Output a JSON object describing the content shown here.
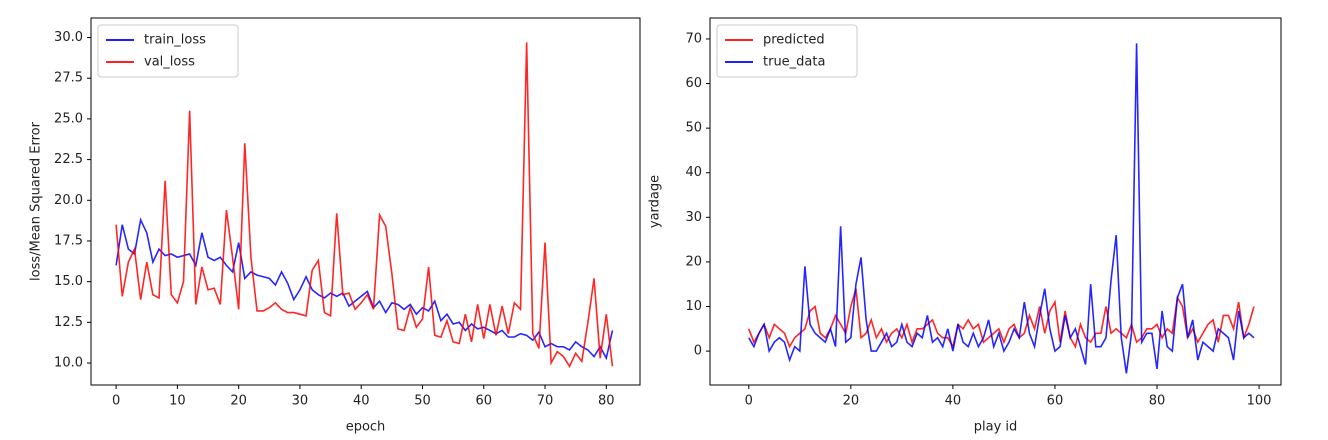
{
  "chart_data": [
    {
      "type": "line",
      "x_label": "epoch",
      "y_label": "loss/Mean Squared Error",
      "xlim": [
        -4.1,
        85.5
      ],
      "ylim": [
        8.65,
        31.2
      ],
      "xticks": [
        0,
        10,
        20,
        30,
        40,
        50,
        60,
        70,
        80
      ],
      "yticks": [
        {
          "value": 10,
          "label": "10.0"
        },
        {
          "value": 12.5,
          "label": "12.5"
        },
        {
          "value": 15,
          "label": "15.0"
        },
        {
          "value": 17.5,
          "label": "17.5"
        },
        {
          "value": 20,
          "label": "20.0"
        },
        {
          "value": 22.5,
          "label": "22.5"
        },
        {
          "value": 25,
          "label": "25.0"
        },
        {
          "value": 27.5,
          "label": "27.5"
        },
        {
          "value": 30,
          "label": "30.0"
        }
      ],
      "legend": "upper-left",
      "series": [
        {
          "name": "train_loss",
          "color": "#0000ff",
          "values": [
            16.0,
            18.5,
            17.0,
            16.7,
            18.8,
            18.0,
            16.2,
            17.0,
            16.6,
            16.7,
            16.5,
            16.6,
            16.7,
            16.0,
            18.0,
            16.5,
            16.3,
            16.5,
            16.0,
            15.6,
            17.4,
            15.2,
            15.6,
            15.4,
            15.3,
            15.2,
            14.8,
            15.6,
            14.9,
            13.9,
            14.5,
            15.3,
            14.5,
            14.2,
            14.0,
            14.3,
            14.1,
            14.3,
            13.5,
            13.8,
            14.1,
            14.4,
            13.4,
            13.8,
            13.1,
            13.7,
            13.6,
            13.3,
            13.6,
            13.0,
            13.4,
            13.2,
            13.8,
            12.6,
            13.0,
            12.4,
            12.5,
            12.0,
            12.4,
            12.1,
            12.2,
            12.0,
            11.8,
            12.0,
            11.6,
            11.6,
            11.8,
            11.7,
            11.4,
            11.9,
            11.0,
            11.2,
            11.0,
            11.0,
            10.8,
            11.3,
            11.0,
            10.8,
            10.4,
            11.0,
            10.3,
            12.0
          ]
        },
        {
          "name": "val_loss",
          "color": "#ff0000",
          "values": [
            18.5,
            14.1,
            16.2,
            17.0,
            13.9,
            16.2,
            14.2,
            14.0,
            21.2,
            14.2,
            13.7,
            15.0,
            25.5,
            13.6,
            15.9,
            14.5,
            14.6,
            13.6,
            19.4,
            16.5,
            13.3,
            23.5,
            16.5,
            13.2,
            13.2,
            13.4,
            13.7,
            13.3,
            13.1,
            13.1,
            13.0,
            12.9,
            15.7,
            16.3,
            13.1,
            12.9,
            19.2,
            14.2,
            14.3,
            13.3,
            13.7,
            14.2,
            13.3,
            19.1,
            18.4,
            15.5,
            12.1,
            12.0,
            13.4,
            12.2,
            12.7,
            15.9,
            11.7,
            11.6,
            12.6,
            11.3,
            11.2,
            13.0,
            11.3,
            13.6,
            11.5,
            13.6,
            11.7,
            13.5,
            11.8,
            13.7,
            13.3,
            29.7,
            11.8,
            10.9,
            17.4,
            10.0,
            10.7,
            10.4,
            9.8,
            10.6,
            10.1,
            12.5,
            15.2,
            10.3,
            13.0,
            9.8
          ]
        }
      ]
    },
    {
      "type": "line",
      "x_label": "play id",
      "y_label": "yardage",
      "xlim": [
        -7.6,
        104.3
      ],
      "ylim": [
        -7.6,
        74.7
      ],
      "xticks": [
        0,
        20,
        40,
        60,
        80,
        100
      ],
      "yticks": [
        0,
        10,
        20,
        30,
        40,
        50,
        60,
        70
      ],
      "legend": "upper-left",
      "series": [
        {
          "name": "predicted",
          "color": "#ff0000",
          "values": [
            5,
            2,
            4,
            6,
            3,
            6,
            5,
            4,
            1,
            3,
            4,
            5,
            9,
            10,
            4,
            3,
            5,
            8,
            6,
            4,
            10,
            14,
            3,
            4,
            7,
            3,
            5,
            2,
            4,
            5,
            3,
            6,
            2,
            5,
            5,
            6,
            7,
            4,
            3,
            3,
            1,
            6,
            5,
            7,
            5,
            6,
            2,
            3,
            4,
            5,
            2,
            5,
            6,
            3,
            4,
            8,
            5,
            10,
            4,
            9,
            11,
            2,
            9,
            3,
            1,
            6,
            3,
            2,
            4,
            4,
            10,
            4,
            5,
            4,
            3,
            6,
            2,
            3,
            5,
            5,
            6,
            3,
            5,
            4,
            12,
            10,
            3,
            5,
            2,
            4,
            6,
            7,
            2,
            8,
            8,
            5,
            11,
            3,
            6,
            10
          ]
        },
        {
          "name": "true_data",
          "color": "#0000ff",
          "values": [
            3,
            1,
            4,
            6,
            0,
            2,
            3,
            2,
            -2,
            1,
            0,
            19,
            6,
            4,
            3,
            2,
            5,
            1,
            28,
            2,
            3,
            15,
            21,
            7,
            0,
            0,
            2,
            4,
            1,
            2,
            6,
            2,
            1,
            4,
            3,
            8,
            2,
            3,
            1,
            5,
            0,
            6,
            2,
            1,
            4,
            1,
            3,
            7,
            1,
            4,
            0,
            2,
            5,
            3,
            11,
            4,
            1,
            8,
            14,
            5,
            0,
            1,
            8,
            3,
            5,
            1,
            -3,
            15,
            1,
            1,
            3,
            16,
            26,
            3,
            -5,
            4,
            69,
            2,
            4,
            4,
            -4,
            9,
            1,
            0,
            12,
            15,
            3,
            7,
            -2,
            2,
            1,
            0,
            5,
            4,
            3,
            -2,
            9,
            3,
            4,
            3
          ]
        }
      ]
    }
  ]
}
